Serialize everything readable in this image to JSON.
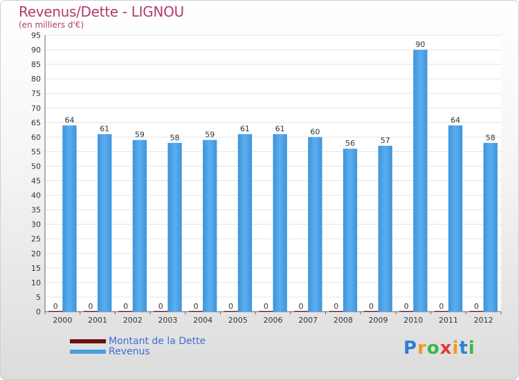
{
  "header": {
    "title": "Revenus/Dette - LIGNOU",
    "subtitle": "(en milliers d'€)"
  },
  "chart_data": {
    "type": "bar",
    "title": "Revenus/Dette - LIGNOU",
    "subtitle": "(en milliers d'€)",
    "xlabel": "",
    "ylabel": "",
    "categories": [
      "2000",
      "2001",
      "2002",
      "2003",
      "2004",
      "2005",
      "2006",
      "2007",
      "2008",
      "2009",
      "2010",
      "2011",
      "2012"
    ],
    "series": [
      {
        "name": "Montant de la Dette",
        "color": "#6b0f0f",
        "values": [
          0,
          0,
          0,
          0,
          0,
          0,
          0,
          0,
          0,
          0,
          0,
          0,
          0
        ]
      },
      {
        "name": "Revenus",
        "color": "#4a9fe3",
        "values": [
          64,
          61,
          59,
          58,
          59,
          61,
          61,
          60,
          56,
          57,
          90,
          64,
          58
        ]
      }
    ],
    "ylim": [
      0,
      95
    ],
    "yticks": [
      0,
      5,
      10,
      15,
      20,
      25,
      30,
      35,
      40,
      45,
      50,
      55,
      60,
      65,
      70,
      75,
      80,
      85,
      90,
      95
    ],
    "grid": true,
    "legend": "bottom-left"
  },
  "legend": {
    "items": [
      {
        "label": "Montant de la Dette",
        "color": "#6b0f0f"
      },
      {
        "label": "Revenus",
        "color": "#4a9fe3"
      }
    ]
  },
  "logo": {
    "letters": [
      "P",
      "r",
      "o",
      "x",
      "i",
      "t",
      "i"
    ],
    "colors": [
      "#2f7fd1",
      "#f29a1f",
      "#3bb54a",
      "#e23a3a",
      "#f29a1f",
      "#2f7fd1",
      "#3bb54a"
    ]
  }
}
